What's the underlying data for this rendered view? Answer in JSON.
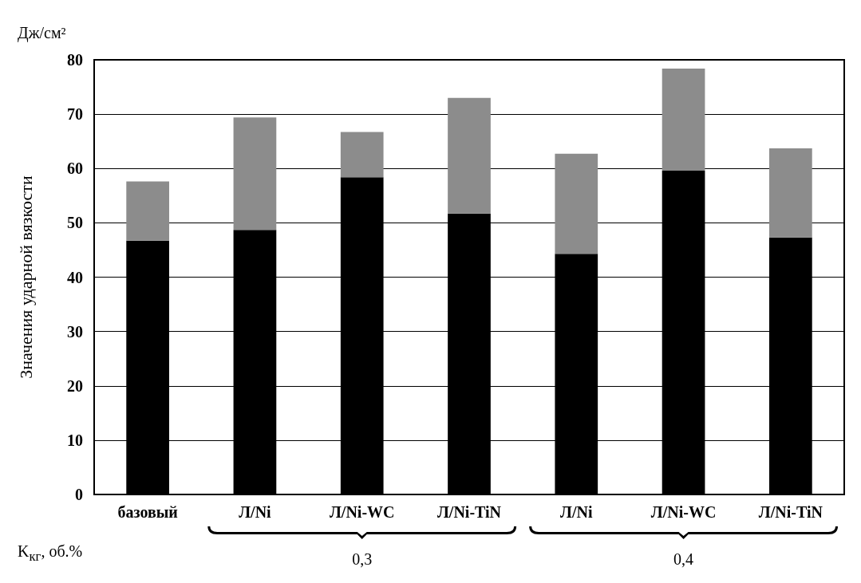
{
  "chart_data": {
    "type": "bar",
    "stacked": true,
    "ylabel": "Значения ударной вязкости",
    "xlabel": "K$_{кг}$, об.%",
    "categories": [
      "базовый",
      "Л/Ni",
      "Л/Ni-WC",
      "Л/Ni-TiN",
      "Л/Ni",
      "Л/Ni-WC",
      "Л/Ni-TiN"
    ],
    "series": [
      {
        "color": "#000000",
        "values": [
          46.7,
          48.7,
          58.4,
          51.7,
          44.3,
          59.6,
          47.3
        ]
      },
      {
        "color": "#8c8c8c",
        "values": [
          10.9,
          20.7,
          8.3,
          21.3,
          18.4,
          18.8,
          16.4
        ]
      }
    ],
    "ylim": [
      0,
      80
    ],
    "yticks": [
      0,
      10,
      20,
      30,
      40,
      50,
      60,
      70,
      80
    ],
    "grid": "y",
    "annotations": [
      "Дж/см²",
      "0,3",
      "0,4"
    ]
  }
}
